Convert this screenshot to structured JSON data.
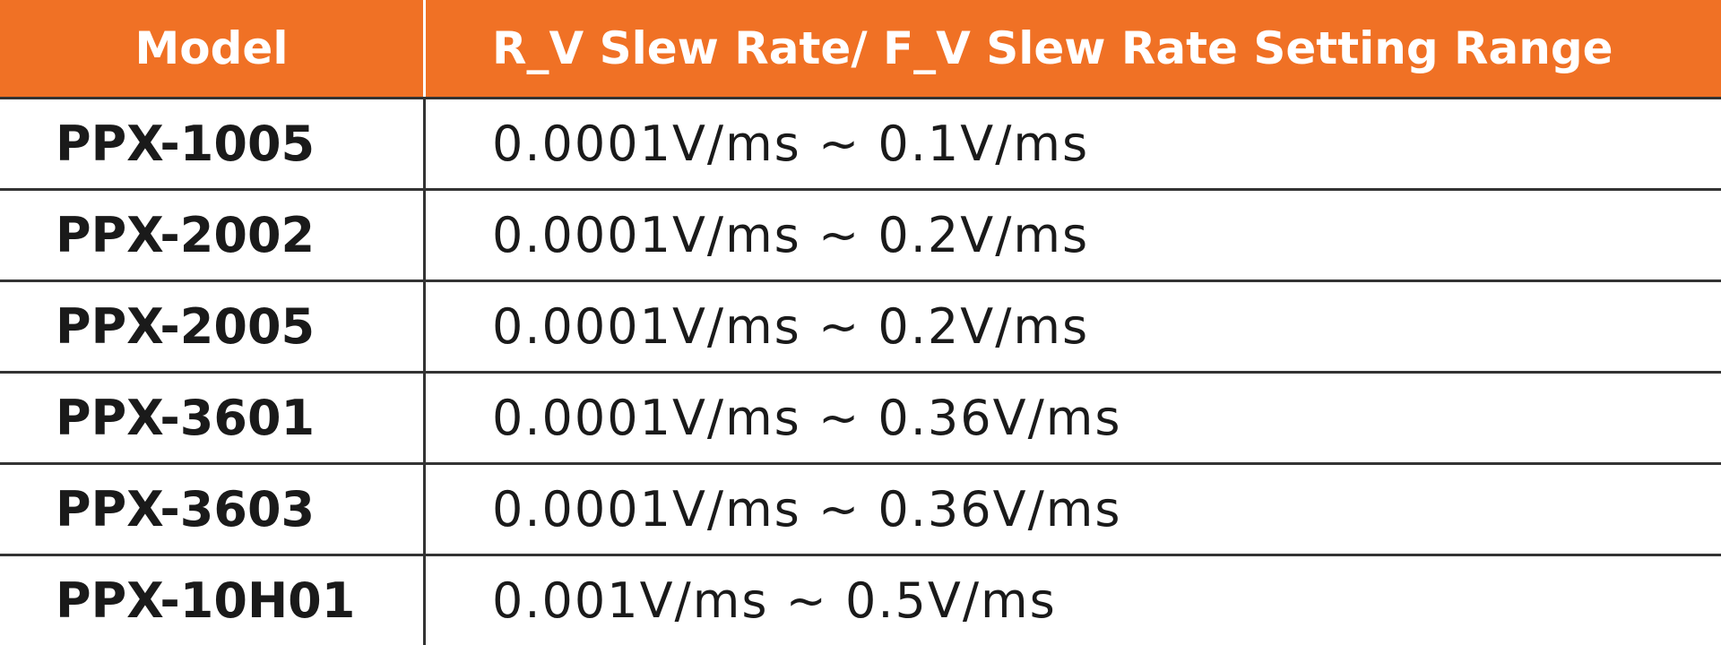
{
  "table": {
    "header": [
      "Model",
      "R_V Slew Rate/ F_V Slew Rate Setting Range"
    ],
    "rows": [
      [
        "PPX-1005",
        "0.0001V/ms ~ 0.1V/ms"
      ],
      [
        "PPX-2002",
        "0.0001V/ms ~ 0.2V/ms"
      ],
      [
        "PPX-2005",
        "0.0001V/ms ~ 0.2V/ms"
      ],
      [
        "PPX-3601",
        "0.0001V/ms ~ 0.36V/ms"
      ],
      [
        "PPX-3603",
        "0.0001V/ms ~ 0.36V/ms"
      ],
      [
        "PPX-10H01",
        "0.001V/ms ~ 0.5V/ms"
      ]
    ]
  }
}
